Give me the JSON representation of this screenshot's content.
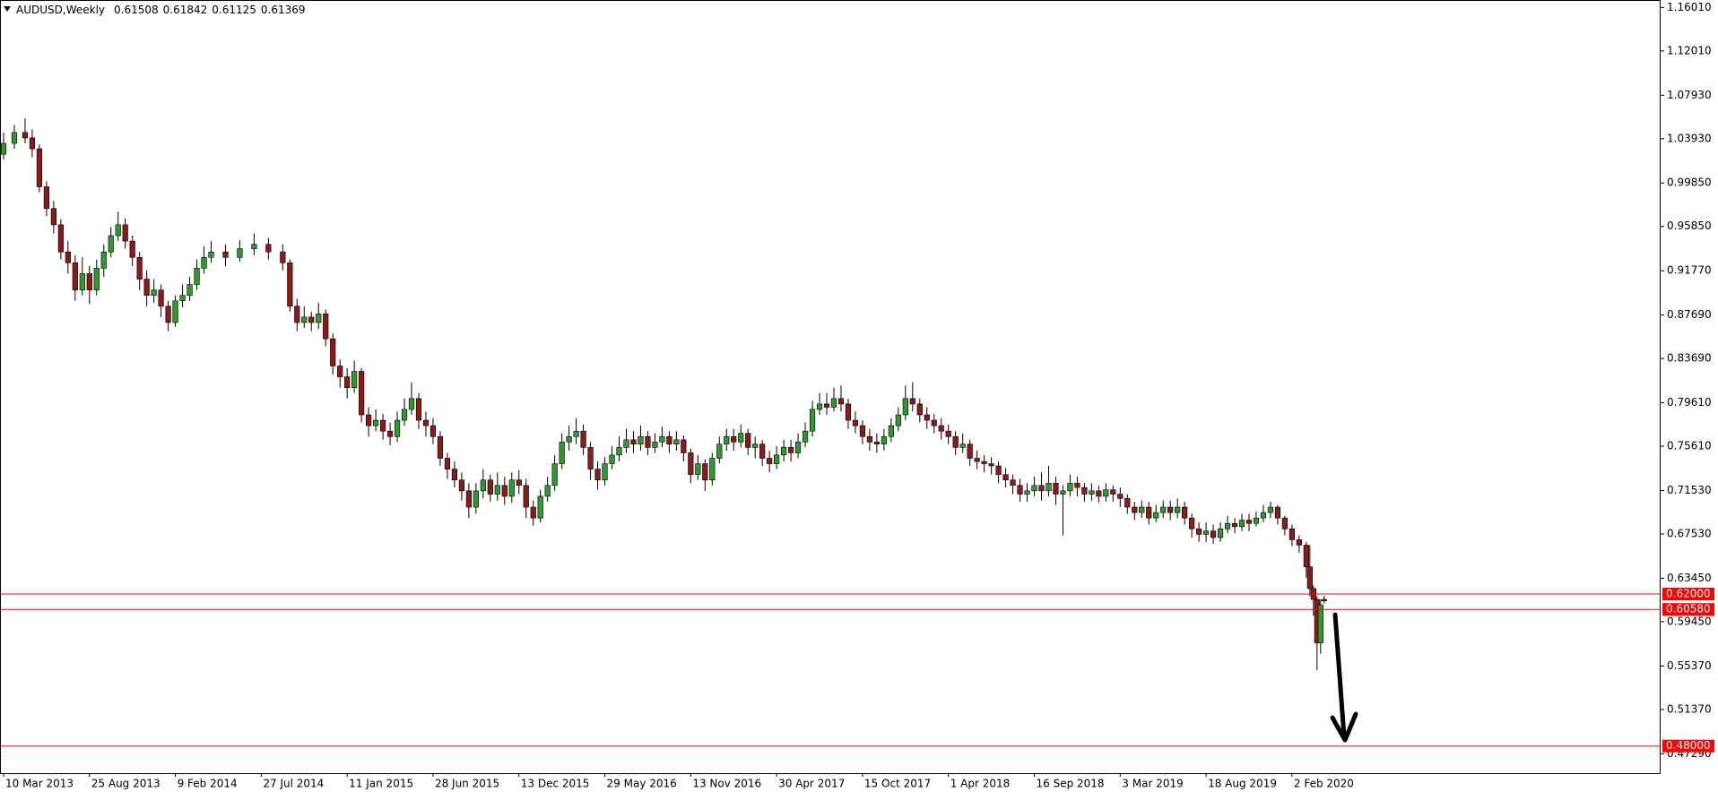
{
  "chart_data": {
    "type": "candlestick",
    "symbol": "AUDUSD,Weekly",
    "x": [
      0,
      3,
      6,
      8,
      10,
      12,
      14,
      16,
      18,
      20,
      22,
      24,
      26,
      28,
      30,
      32,
      34,
      36,
      38,
      40,
      42,
      44,
      46,
      48,
      50,
      52,
      54,
      56,
      58,
      62,
      66,
      70,
      74,
      78,
      80,
      82,
      84,
      86,
      88,
      90,
      92,
      94,
      96,
      98,
      100,
      102,
      104,
      106,
      108,
      110,
      112,
      114,
      116,
      118,
      120,
      122,
      124,
      126,
      128,
      130,
      132,
      134,
      136,
      138,
      140,
      142,
      144,
      146,
      148,
      150,
      152,
      154,
      156,
      158,
      160,
      162,
      164,
      166,
      168,
      170,
      172,
      174,
      176,
      178,
      180,
      182,
      184,
      186,
      188,
      190,
      192,
      194,
      196,
      198,
      200,
      202,
      204,
      206,
      208,
      210,
      212,
      214,
      216,
      218,
      220,
      222,
      224,
      226,
      228,
      230,
      232,
      234,
      236,
      238,
      240,
      242,
      244,
      246,
      248,
      250,
      252,
      254,
      256,
      258,
      260,
      262,
      264,
      266,
      268,
      270,
      272,
      274,
      276,
      278,
      280,
      282,
      284,
      286,
      288,
      290,
      292,
      294,
      296,
      298,
      300,
      302,
      304,
      306,
      308,
      310,
      312,
      314,
      316,
      318,
      320,
      322,
      324,
      326,
      328,
      330,
      332,
      334,
      336,
      338,
      340,
      342,
      344,
      346,
      348,
      350,
      352,
      354,
      356,
      358,
      360,
      362,
      364,
      365,
      366,
      367,
      368,
      369
    ],
    "ohlc": [
      [
        1.025,
        1.045,
        1.02,
        1.035
      ],
      [
        1.035,
        1.052,
        1.03,
        1.045
      ],
      [
        1.045,
        1.058,
        1.035,
        1.04
      ],
      [
        1.04,
        1.048,
        1.022,
        1.03
      ],
      [
        1.03,
        1.034,
        0.99,
        0.995
      ],
      [
        0.995,
        1.0,
        0.968,
        0.975
      ],
      [
        0.975,
        0.982,
        0.952,
        0.96
      ],
      [
        0.96,
        0.965,
        0.928,
        0.935
      ],
      [
        0.935,
        0.945,
        0.915,
        0.925
      ],
      [
        0.925,
        0.932,
        0.89,
        0.9
      ],
      [
        0.9,
        0.93,
        0.895,
        0.915
      ],
      [
        0.915,
        0.922,
        0.887,
        0.9
      ],
      [
        0.9,
        0.928,
        0.895,
        0.92
      ],
      [
        0.92,
        0.942,
        0.912,
        0.935
      ],
      [
        0.935,
        0.958,
        0.93,
        0.95
      ],
      [
        0.95,
        0.972,
        0.945,
        0.96
      ],
      [
        0.96,
        0.966,
        0.938,
        0.945
      ],
      [
        0.945,
        0.95,
        0.922,
        0.93
      ],
      [
        0.93,
        0.935,
        0.9,
        0.91
      ],
      [
        0.91,
        0.918,
        0.885,
        0.895
      ],
      [
        0.895,
        0.91,
        0.888,
        0.9
      ],
      [
        0.9,
        0.905,
        0.875,
        0.885
      ],
      [
        0.885,
        0.89,
        0.862,
        0.87
      ],
      [
        0.87,
        0.895,
        0.866,
        0.89
      ],
      [
        0.89,
        0.905,
        0.884,
        0.895
      ],
      [
        0.895,
        0.912,
        0.89,
        0.905
      ],
      [
        0.905,
        0.928,
        0.9,
        0.92
      ],
      [
        0.92,
        0.94,
        0.915,
        0.93
      ],
      [
        0.93,
        0.945,
        0.925,
        0.935
      ],
      [
        0.935,
        0.942,
        0.922,
        0.93
      ],
      [
        0.93,
        0.946,
        0.926,
        0.938
      ],
      [
        0.938,
        0.952,
        0.932,
        0.942
      ],
      [
        0.942,
        0.948,
        0.928,
        0.935
      ],
      [
        0.935,
        0.942,
        0.918,
        0.925
      ],
      [
        0.925,
        0.928,
        0.88,
        0.885
      ],
      [
        0.885,
        0.892,
        0.862,
        0.87
      ],
      [
        0.87,
        0.885,
        0.865,
        0.875
      ],
      [
        0.875,
        0.88,
        0.862,
        0.87
      ],
      [
        0.87,
        0.888,
        0.864,
        0.878
      ],
      [
        0.878,
        0.882,
        0.848,
        0.855
      ],
      [
        0.855,
        0.86,
        0.822,
        0.83
      ],
      [
        0.83,
        0.836,
        0.81,
        0.82
      ],
      [
        0.82,
        0.828,
        0.8,
        0.81
      ],
      [
        0.81,
        0.835,
        0.805,
        0.825
      ],
      [
        0.825,
        0.828,
        0.778,
        0.785
      ],
      [
        0.785,
        0.792,
        0.765,
        0.775
      ],
      [
        0.775,
        0.79,
        0.77,
        0.78
      ],
      [
        0.78,
        0.786,
        0.762,
        0.77
      ],
      [
        0.77,
        0.778,
        0.757,
        0.765
      ],
      [
        0.765,
        0.788,
        0.76,
        0.78
      ],
      [
        0.78,
        0.8,
        0.775,
        0.79
      ],
      [
        0.79,
        0.815,
        0.785,
        0.8
      ],
      [
        0.8,
        0.805,
        0.772,
        0.78
      ],
      [
        0.78,
        0.788,
        0.765,
        0.775
      ],
      [
        0.775,
        0.782,
        0.758,
        0.765
      ],
      [
        0.765,
        0.77,
        0.738,
        0.745
      ],
      [
        0.745,
        0.75,
        0.726,
        0.735
      ],
      [
        0.735,
        0.742,
        0.718,
        0.725
      ],
      [
        0.725,
        0.732,
        0.706,
        0.715
      ],
      [
        0.715,
        0.722,
        0.69,
        0.7
      ],
      [
        0.7,
        0.722,
        0.694,
        0.715
      ],
      [
        0.715,
        0.735,
        0.708,
        0.725
      ],
      [
        0.725,
        0.73,
        0.705,
        0.712
      ],
      [
        0.712,
        0.732,
        0.706,
        0.72
      ],
      [
        0.72,
        0.728,
        0.702,
        0.71
      ],
      [
        0.71,
        0.732,
        0.704,
        0.725
      ],
      [
        0.725,
        0.734,
        0.712,
        0.72
      ],
      [
        0.72,
        0.726,
        0.69,
        0.7
      ],
      [
        0.7,
        0.706,
        0.683,
        0.69
      ],
      [
        0.69,
        0.716,
        0.686,
        0.71
      ],
      [
        0.71,
        0.728,
        0.705,
        0.72
      ],
      [
        0.72,
        0.748,
        0.715,
        0.74
      ],
      [
        0.74,
        0.768,
        0.735,
        0.76
      ],
      [
        0.76,
        0.775,
        0.752,
        0.765
      ],
      [
        0.765,
        0.782,
        0.758,
        0.77
      ],
      [
        0.77,
        0.776,
        0.748,
        0.755
      ],
      [
        0.755,
        0.76,
        0.725,
        0.735
      ],
      [
        0.735,
        0.742,
        0.716,
        0.725
      ],
      [
        0.725,
        0.746,
        0.72,
        0.74
      ],
      [
        0.74,
        0.756,
        0.735,
        0.748
      ],
      [
        0.748,
        0.765,
        0.742,
        0.755
      ],
      [
        0.755,
        0.772,
        0.75,
        0.762
      ],
      [
        0.762,
        0.77,
        0.75,
        0.758
      ],
      [
        0.758,
        0.775,
        0.752,
        0.765
      ],
      [
        0.765,
        0.77,
        0.748,
        0.755
      ],
      [
        0.755,
        0.768,
        0.75,
        0.76
      ],
      [
        0.76,
        0.774,
        0.755,
        0.765
      ],
      [
        0.765,
        0.77,
        0.75,
        0.758
      ],
      [
        0.758,
        0.77,
        0.752,
        0.762
      ],
      [
        0.762,
        0.766,
        0.742,
        0.75
      ],
      [
        0.75,
        0.754,
        0.722,
        0.73
      ],
      [
        0.73,
        0.748,
        0.725,
        0.74
      ],
      [
        0.74,
        0.744,
        0.715,
        0.725
      ],
      [
        0.725,
        0.75,
        0.72,
        0.745
      ],
      [
        0.745,
        0.765,
        0.74,
        0.758
      ],
      [
        0.758,
        0.772,
        0.752,
        0.765
      ],
      [
        0.765,
        0.772,
        0.752,
        0.76
      ],
      [
        0.76,
        0.776,
        0.755,
        0.768
      ],
      [
        0.768,
        0.772,
        0.748,
        0.755
      ],
      [
        0.755,
        0.765,
        0.745,
        0.758
      ],
      [
        0.758,
        0.762,
        0.738,
        0.745
      ],
      [
        0.745,
        0.752,
        0.732,
        0.74
      ],
      [
        0.74,
        0.756,
        0.735,
        0.748
      ],
      [
        0.748,
        0.762,
        0.742,
        0.755
      ],
      [
        0.755,
        0.762,
        0.742,
        0.75
      ],
      [
        0.75,
        0.768,
        0.745,
        0.76
      ],
      [
        0.76,
        0.778,
        0.755,
        0.77
      ],
      [
        0.77,
        0.798,
        0.765,
        0.79
      ],
      [
        0.79,
        0.805,
        0.785,
        0.795
      ],
      [
        0.795,
        0.805,
        0.785,
        0.792
      ],
      [
        0.792,
        0.81,
        0.788,
        0.8
      ],
      [
        0.8,
        0.812,
        0.788,
        0.795
      ],
      [
        0.795,
        0.8,
        0.772,
        0.78
      ],
      [
        0.78,
        0.788,
        0.768,
        0.775
      ],
      [
        0.775,
        0.78,
        0.758,
        0.765
      ],
      [
        0.765,
        0.772,
        0.752,
        0.76
      ],
      [
        0.76,
        0.768,
        0.75,
        0.758
      ],
      [
        0.758,
        0.772,
        0.752,
        0.765
      ],
      [
        0.765,
        0.782,
        0.76,
        0.775
      ],
      [
        0.775,
        0.792,
        0.77,
        0.785
      ],
      [
        0.785,
        0.812,
        0.78,
        0.8
      ],
      [
        0.8,
        0.815,
        0.788,
        0.795
      ],
      [
        0.795,
        0.8,
        0.778,
        0.785
      ],
      [
        0.785,
        0.792,
        0.772,
        0.78
      ],
      [
        0.78,
        0.786,
        0.768,
        0.775
      ],
      [
        0.775,
        0.782,
        0.762,
        0.77
      ],
      [
        0.77,
        0.776,
        0.758,
        0.765
      ],
      [
        0.765,
        0.77,
        0.748,
        0.755
      ],
      [
        0.755,
        0.768,
        0.75,
        0.758
      ],
      [
        0.758,
        0.762,
        0.738,
        0.745
      ],
      [
        0.745,
        0.752,
        0.735,
        0.742
      ],
      [
        0.742,
        0.748,
        0.732,
        0.74
      ],
      [
        0.74,
        0.746,
        0.73,
        0.738
      ],
      [
        0.738,
        0.742,
        0.722,
        0.73
      ],
      [
        0.73,
        0.736,
        0.718,
        0.725
      ],
      [
        0.725,
        0.73,
        0.712,
        0.72
      ],
      [
        0.72,
        0.726,
        0.705,
        0.712
      ],
      [
        0.712,
        0.722,
        0.705,
        0.715
      ],
      [
        0.715,
        0.728,
        0.71,
        0.72
      ],
      [
        0.72,
        0.732,
        0.706,
        0.715
      ],
      [
        0.715,
        0.738,
        0.71,
        0.722
      ],
      [
        0.722,
        0.728,
        0.702,
        0.712
      ],
      [
        0.712,
        0.72,
        0.674,
        0.715
      ],
      [
        0.715,
        0.73,
        0.71,
        0.722
      ],
      [
        0.722,
        0.728,
        0.71,
        0.718
      ],
      [
        0.718,
        0.722,
        0.705,
        0.712
      ],
      [
        0.712,
        0.722,
        0.706,
        0.715
      ],
      [
        0.715,
        0.72,
        0.704,
        0.71
      ],
      [
        0.71,
        0.722,
        0.705,
        0.716
      ],
      [
        0.716,
        0.72,
        0.705,
        0.712
      ],
      [
        0.712,
        0.718,
        0.7,
        0.708
      ],
      [
        0.708,
        0.712,
        0.694,
        0.7
      ],
      [
        0.7,
        0.705,
        0.688,
        0.695
      ],
      [
        0.695,
        0.706,
        0.69,
        0.7
      ],
      [
        0.7,
        0.705,
        0.684,
        0.69
      ],
      [
        0.69,
        0.702,
        0.686,
        0.695
      ],
      [
        0.695,
        0.706,
        0.69,
        0.7
      ],
      [
        0.7,
        0.706,
        0.688,
        0.695
      ],
      [
        0.695,
        0.708,
        0.69,
        0.7
      ],
      [
        0.7,
        0.705,
        0.684,
        0.69
      ],
      [
        0.69,
        0.694,
        0.672,
        0.68
      ],
      [
        0.68,
        0.686,
        0.668,
        0.675
      ],
      [
        0.675,
        0.686,
        0.668,
        0.678
      ],
      [
        0.678,
        0.684,
        0.666,
        0.672
      ],
      [
        0.672,
        0.686,
        0.668,
        0.68
      ],
      [
        0.68,
        0.692,
        0.676,
        0.685
      ],
      [
        0.685,
        0.69,
        0.676,
        0.682
      ],
      [
        0.682,
        0.694,
        0.678,
        0.688
      ],
      [
        0.688,
        0.694,
        0.678,
        0.685
      ],
      [
        0.685,
        0.696,
        0.682,
        0.69
      ],
      [
        0.69,
        0.702,
        0.686,
        0.695
      ],
      [
        0.695,
        0.705,
        0.69,
        0.7
      ],
      [
        0.7,
        0.702,
        0.684,
        0.69
      ],
      [
        0.69,
        0.692,
        0.674,
        0.68
      ],
      [
        0.68,
        0.684,
        0.664,
        0.67
      ],
      [
        0.67,
        0.674,
        0.658,
        0.665
      ],
      [
        0.665,
        0.668,
        0.635,
        0.645
      ],
      [
        0.645,
        0.665,
        0.618,
        0.625
      ],
      [
        0.625,
        0.628,
        0.6,
        0.615
      ],
      [
        0.615,
        0.618,
        0.55,
        0.575
      ],
      [
        0.575,
        0.615,
        0.565,
        0.61
      ],
      [
        0.61508,
        0.61842,
        0.61125,
        0.61369
      ]
    ],
    "xlim": [
      -1,
      463
    ],
    "xticks": [
      {
        "value": 0,
        "label": "10 Mar 2013"
      },
      {
        "value": 24,
        "label": "25 Aug 2013"
      },
      {
        "value": 48,
        "label": "9 Feb 2014"
      },
      {
        "value": 72,
        "label": "27 Jul 2014"
      },
      {
        "value": 96,
        "label": "11 Jan 2015"
      },
      {
        "value": 120,
        "label": "28 Jun 2015"
      },
      {
        "value": 144,
        "label": "13 Dec 2015"
      },
      {
        "value": 168,
        "label": "29 May 2016"
      },
      {
        "value": 192,
        "label": "13 Nov 2016"
      },
      {
        "value": 216,
        "label": "30 Apr 2017"
      },
      {
        "value": 240,
        "label": "15 Oct 2017"
      },
      {
        "value": 264,
        "label": "1 Apr 2018"
      },
      {
        "value": 288,
        "label": "16 Sep 2018"
      },
      {
        "value": 312,
        "label": "3 Mar 2019"
      },
      {
        "value": 336,
        "label": "18 Aug 2019"
      },
      {
        "value": 360,
        "label": "2 Feb 2020"
      }
    ],
    "ylim": [
      0.455,
      1.167
    ],
    "yticks": [
      {
        "value": 1.1601,
        "label": "1.16010"
      },
      {
        "value": 1.1201,
        "label": "1.12010"
      },
      {
        "value": 1.0793,
        "label": "1.07930"
      },
      {
        "value": 1.0393,
        "label": "1.03930"
      },
      {
        "value": 0.9985,
        "label": "0.99850"
      },
      {
        "value": 0.9585,
        "label": "0.95850"
      },
      {
        "value": 0.9177,
        "label": "0.91770"
      },
      {
        "value": 0.8769,
        "label": "0.87690"
      },
      {
        "value": 0.8369,
        "label": "0.83690"
      },
      {
        "value": 0.7961,
        "label": "0.79610"
      },
      {
        "value": 0.7561,
        "label": "0.75610"
      },
      {
        "value": 0.7153,
        "label": "0.71530"
      },
      {
        "value": 0.6753,
        "label": "0.67530"
      },
      {
        "value": 0.6345,
        "label": "0.63450"
      },
      {
        "value": 0.5945,
        "label": "0.59450"
      },
      {
        "value": 0.5537,
        "label": "0.55370"
      },
      {
        "value": 0.5137,
        "label": "0.51370"
      },
      {
        "value": 0.4729,
        "label": "0.47290"
      }
    ],
    "hlines": [
      {
        "value": 0.62,
        "label": "0.62000"
      },
      {
        "value": 0.6058,
        "label": "0.60580"
      },
      {
        "value": 0.48,
        "label": "0.48000"
      }
    ],
    "up_color": "#2e9a2e",
    "down_color": "#8b1a1a",
    "wick_color": "#000000",
    "level_color": "#ff0000",
    "grid": false
  }
}
